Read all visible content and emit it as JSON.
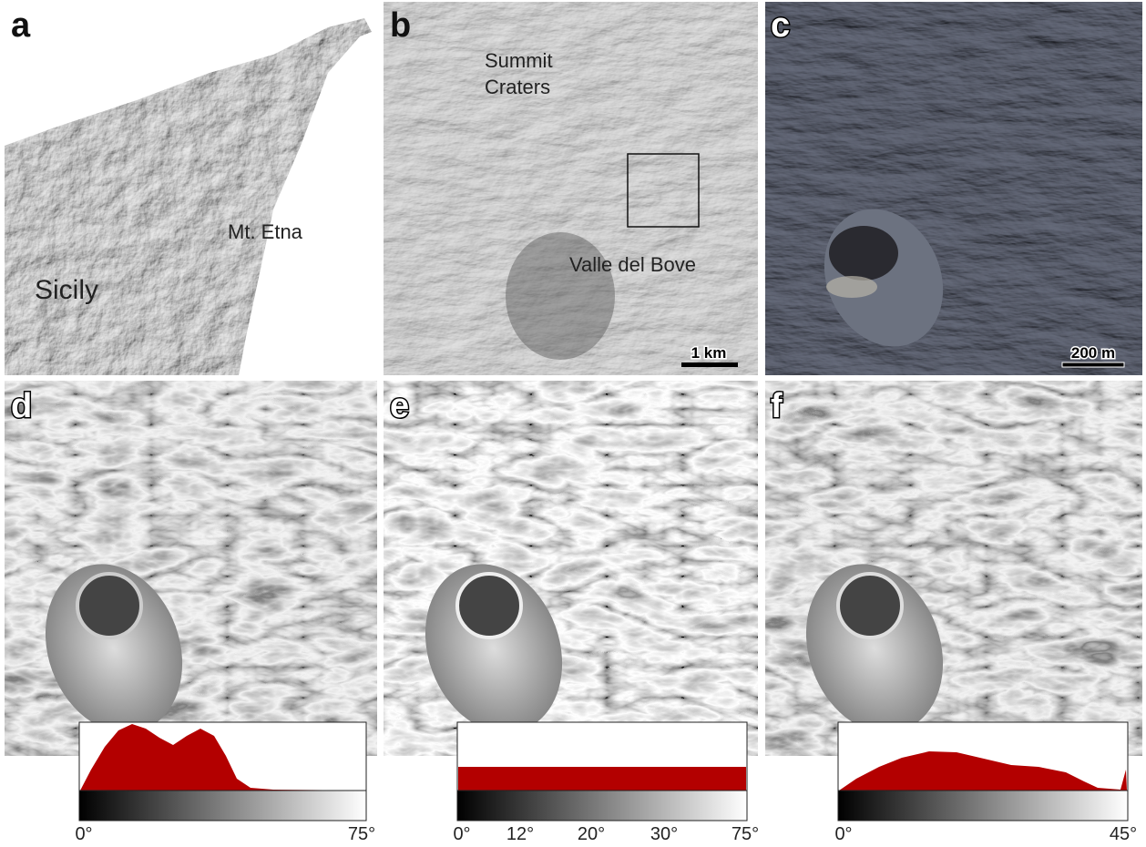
{
  "panels": [
    {
      "label": "a",
      "annotations": [
        "Mt. Etna",
        "Sicily"
      ]
    },
    {
      "label": "b",
      "annotations": [
        "Summit",
        "Craters",
        "Valle del Bove"
      ],
      "scale_bar": "1 km"
    },
    {
      "label": "c",
      "scale_bar": "200 m"
    },
    {
      "label": "d",
      "colorbar_labels": [
        "0°",
        "75°"
      ]
    },
    {
      "label": "e",
      "colorbar_labels": [
        "0°",
        "12°",
        "20°",
        "30°",
        "75°"
      ]
    },
    {
      "label": "f",
      "colorbar_labels": [
        "0°",
        "45°"
      ]
    }
  ]
}
